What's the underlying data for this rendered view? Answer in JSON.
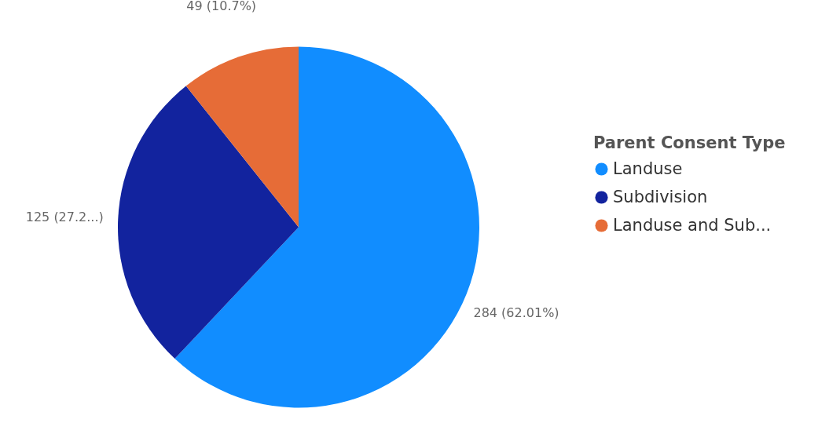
{
  "chart_data": {
    "type": "pie",
    "legend_title": "Parent Consent Type",
    "legend": "right",
    "categories": [
      "Landuse",
      "Subdivision",
      "Landuse and Sub..."
    ],
    "values": [
      284,
      125,
      49
    ],
    "colors": [
      "#118dff",
      "#12239e",
      "#e66c37"
    ],
    "value_labels": [
      "284 (62.01%)",
      "125 (27.2...)",
      "49 (10.7%)"
    ]
  }
}
